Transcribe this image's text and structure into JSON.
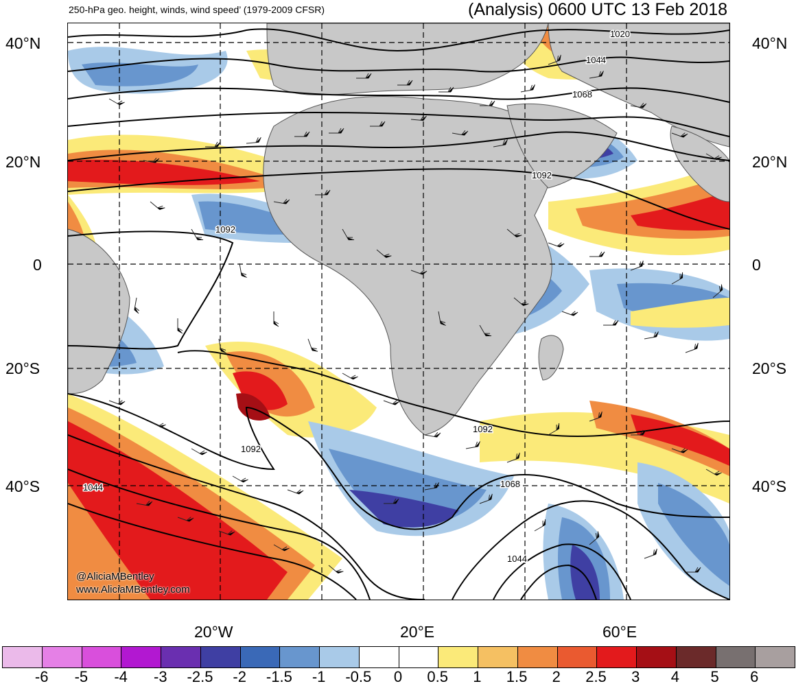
{
  "header": {
    "left_title": "250-hPa geo. height, winds, wind speed’ (1979-2009 CFSR)",
    "right_title": "(Analysis) 0600 UTC 13 Feb 2018"
  },
  "latitude_labels": [
    "40°N",
    "20°N",
    "0",
    "20°S",
    "40°S"
  ],
  "longitude_labels": [
    "20°W",
    "20°E",
    "60°E"
  ],
  "contour_labels": [
    "1020",
    "1044",
    "1068",
    "1092",
    "1092",
    "1092",
    "1092",
    "1044",
    "1068",
    "1044"
  ],
  "credits": {
    "handle": "@AliciaMBentley",
    "website": "www.AliciaMBentley.com"
  },
  "colorbar": {
    "labels": [
      "-6",
      "-5",
      "-4",
      "-3",
      "-2.5",
      "-2",
      "-1.5",
      "-1",
      "-0.5",
      "0",
      "0.5",
      "1",
      "1.5",
      "2",
      "2.5",
      "3",
      "4",
      "5",
      "6"
    ],
    "colors": [
      "#ebbaea",
      "#e580e6",
      "#d94fdc",
      "#b218d1",
      "#6a2fb0",
      "#3f3fa3",
      "#3a69b7",
      "#6896ce",
      "#a9cae8",
      "#ffffff",
      "#ffffff",
      "#fbea79",
      "#f5c062",
      "#f08c42",
      "#ea5a30",
      "#e31a1c",
      "#a50f15",
      "#6b2a2a",
      "#787070",
      "#a89f9f"
    ]
  },
  "map_colors": {
    "land": "#c8c8c8",
    "strong_negative": "#3f3fa3",
    "negative": "#6896ce",
    "weak_negative": "#a9cae8",
    "weak_positive": "#fbea79",
    "positive": "#f08c42",
    "strong_positive": "#e31a1c",
    "extreme_positive": "#a50f15"
  }
}
